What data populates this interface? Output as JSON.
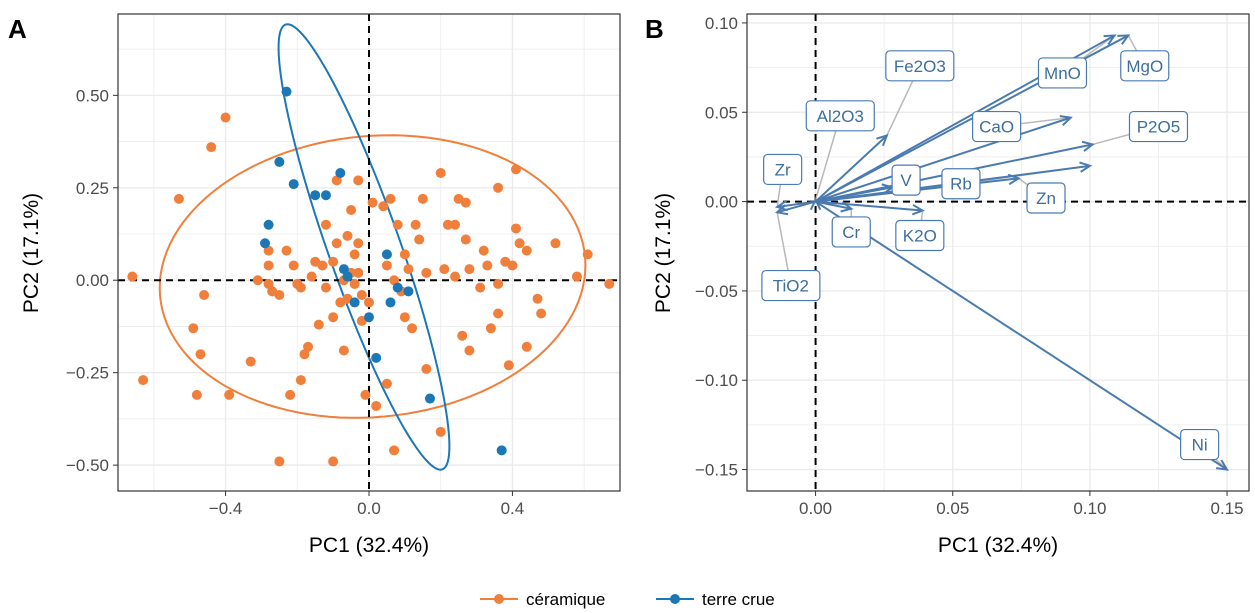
{
  "colors": {
    "ceramique": "#F07F3C",
    "terre_crue": "#1B77B5",
    "arrow": "#4A7BB0",
    "connector": "#B8B8B8",
    "grid": "#EBEBEB"
  },
  "legend": {
    "items": [
      {
        "label": "céramique",
        "color": "#F07F3C"
      },
      {
        "label": "terre crue",
        "color": "#1B77B5"
      }
    ],
    "position": "bottom"
  },
  "chart_data": [
    {
      "type": "scatter",
      "panel": "A",
      "xlabel": "PC1 (32.4%)",
      "ylabel": "PC2 (17.1%)",
      "xlim": [
        -0.7,
        0.7
      ],
      "ylim": [
        -0.57,
        0.72
      ],
      "xticks": [
        -0.4,
        0.0,
        0.4
      ],
      "xtick_labels": [
        "−0.4",
        "0.0",
        "0.4"
      ],
      "yticks": [
        -0.5,
        -0.25,
        0.0,
        0.25,
        0.5
      ],
      "ytick_labels": [
        "−0.50",
        "−0.25",
        "0.00",
        "0.25",
        "0.50"
      ],
      "grid": true,
      "reference_lines": {
        "x": 0,
        "y": 0
      },
      "series": [
        {
          "name": "céramique",
          "color": "#F07F3C",
          "points": [
            [
              -0.66,
              0.01
            ],
            [
              -0.63,
              -0.27
            ],
            [
              -0.53,
              0.22
            ],
            [
              -0.49,
              -0.13
            ],
            [
              -0.48,
              -0.31
            ],
            [
              -0.47,
              -0.2
            ],
            [
              -0.46,
              -0.04
            ],
            [
              -0.44,
              0.36
            ],
            [
              -0.4,
              0.44
            ],
            [
              -0.39,
              -0.31
            ],
            [
              -0.33,
              -0.22
            ],
            [
              -0.31,
              0.0
            ],
            [
              -0.28,
              -0.01
            ],
            [
              -0.28,
              0.08
            ],
            [
              -0.28,
              0.04
            ],
            [
              -0.27,
              -0.03
            ],
            [
              -0.25,
              -0.49
            ],
            [
              -0.25,
              -0.04
            ],
            [
              -0.22,
              -0.31
            ],
            [
              -0.21,
              0.04
            ],
            [
              -0.2,
              -0.01
            ],
            [
              -0.19,
              -0.02
            ],
            [
              -0.19,
              -0.27
            ],
            [
              -0.18,
              -0.2
            ],
            [
              -0.17,
              -0.18
            ],
            [
              -0.16,
              0.01
            ],
            [
              -0.15,
              0.05
            ],
            [
              -0.14,
              -0.12
            ],
            [
              -0.13,
              0.04
            ],
            [
              -0.12,
              -0.02
            ],
            [
              -0.12,
              0.15
            ],
            [
              -0.1,
              0.05
            ],
            [
              -0.1,
              -0.1
            ],
            [
              -0.09,
              0.1
            ],
            [
              -0.09,
              0.27
            ],
            [
              -0.08,
              -0.06
            ],
            [
              -0.07,
              0.0
            ],
            [
              -0.07,
              -0.19
            ],
            [
              -0.06,
              -0.05
            ],
            [
              -0.06,
              0.12
            ],
            [
              -0.05,
              0.02
            ],
            [
              -0.05,
              0.19
            ],
            [
              -0.04,
              0.07
            ],
            [
              -0.04,
              -0.01
            ],
            [
              -0.03,
              0.02
            ],
            [
              -0.03,
              0.27
            ],
            [
              -0.03,
              0.1
            ],
            [
              -0.02,
              -0.11
            ],
            [
              -0.02,
              -0.04
            ],
            [
              -0.01,
              -0.31
            ],
            [
              0.0,
              -0.06
            ],
            [
              0.01,
              0.21
            ],
            [
              0.02,
              -0.34
            ],
            [
              0.04,
              0.2
            ],
            [
              0.05,
              -0.28
            ],
            [
              0.05,
              0.04
            ],
            [
              0.06,
              0.22
            ],
            [
              0.07,
              0.0
            ],
            [
              0.07,
              -0.46
            ],
            [
              0.08,
              0.15
            ],
            [
              0.09,
              -0.03
            ],
            [
              0.1,
              0.07
            ],
            [
              0.1,
              -0.1
            ],
            [
              0.11,
              0.03
            ],
            [
              0.12,
              -0.13
            ],
            [
              0.13,
              0.15
            ],
            [
              0.14,
              0.11
            ],
            [
              0.15,
              0.22
            ],
            [
              0.16,
              -0.24
            ],
            [
              0.16,
              0.02
            ],
            [
              0.2,
              0.29
            ],
            [
              0.2,
              -0.41
            ],
            [
              0.21,
              0.03
            ],
            [
              0.22,
              0.15
            ],
            [
              0.24,
              0.01
            ],
            [
              0.25,
              0.22
            ],
            [
              0.26,
              -0.15
            ],
            [
              0.27,
              0.11
            ],
            [
              0.27,
              0.21
            ],
            [
              0.28,
              0.03
            ],
            [
              0.28,
              -0.19
            ],
            [
              0.31,
              -0.02
            ],
            [
              0.32,
              0.08
            ],
            [
              0.33,
              0.04
            ],
            [
              0.34,
              -0.13
            ],
            [
              0.36,
              -0.01
            ],
            [
              0.36,
              -0.09
            ],
            [
              0.36,
              0.25
            ],
            [
              0.38,
              0.05
            ],
            [
              0.39,
              -0.23
            ],
            [
              0.4,
              0.04
            ],
            [
              0.41,
              0.14
            ],
            [
              0.42,
              0.1
            ],
            [
              0.44,
              0.08
            ],
            [
              0.44,
              -0.18
            ],
            [
              0.47,
              -0.05
            ],
            [
              0.48,
              -0.09
            ],
            [
              0.52,
              0.1
            ],
            [
              0.58,
              0.01
            ],
            [
              0.61,
              0.07
            ],
            [
              0.67,
              -0.01
            ],
            [
              0.41,
              0.3
            ],
            [
              -0.1,
              -0.49
            ],
            [
              -0.23,
              0.08
            ],
            [
              0.24,
              0.15
            ]
          ]
        },
        {
          "name": "terre crue",
          "color": "#1B77B5",
          "points": [
            [
              -0.29,
              0.1
            ],
            [
              -0.28,
              0.15
            ],
            [
              -0.25,
              0.32
            ],
            [
              -0.23,
              0.51
            ],
            [
              -0.21,
              0.26
            ],
            [
              -0.15,
              0.23
            ],
            [
              -0.12,
              0.23
            ],
            [
              -0.08,
              0.29
            ],
            [
              -0.07,
              0.03
            ],
            [
              -0.06,
              0.01
            ],
            [
              -0.04,
              -0.06
            ],
            [
              0.0,
              -0.1
            ],
            [
              0.02,
              -0.21
            ],
            [
              0.05,
              0.07
            ],
            [
              0.06,
              -0.06
            ],
            [
              0.08,
              -0.02
            ],
            [
              0.11,
              -0.03
            ],
            [
              0.17,
              -0.32
            ],
            [
              0.37,
              -0.46
            ]
          ]
        }
      ],
      "ellipses": [
        {
          "series": "céramique",
          "cx": 0.01,
          "cy": 0.01,
          "rx": 0.595,
          "ry": 0.38,
          "angle_deg": 5
        },
        {
          "series": "terre crue",
          "cx": -0.014,
          "cy": 0.09,
          "rx": 0.1,
          "ry": 0.64,
          "angle_deg": 20
        }
      ]
    },
    {
      "type": "biplot",
      "panel": "B",
      "xlabel": "PC1 (32.4%)",
      "ylabel": "PC2 (17.1%)",
      "xlim": [
        -0.025,
        0.158
      ],
      "ylim": [
        -0.162,
        0.105
      ],
      "xticks": [
        0.0,
        0.05,
        0.1,
        0.15
      ],
      "xtick_labels": [
        "0.00",
        "0.05",
        "0.10",
        "0.15"
      ],
      "yticks": [
        -0.15,
        -0.1,
        -0.05,
        0.0,
        0.05,
        0.1
      ],
      "ytick_labels": [
        "−0.15",
        "−0.10",
        "−0.05",
        "0.00",
        "0.05",
        "0.10"
      ],
      "grid": true,
      "reference_lines": {
        "x": 0,
        "y": 0
      },
      "vectors": [
        {
          "name": "Fe2O3",
          "x": 0.026,
          "y": 0.037,
          "label_x": 0.038,
          "label_y": 0.076
        },
        {
          "name": "MnO",
          "x": 0.109,
          "y": 0.093,
          "label_x": 0.09,
          "label_y": 0.072
        },
        {
          "name": "MgO",
          "x": 0.114,
          "y": 0.093,
          "label_x": 0.12,
          "label_y": 0.076
        },
        {
          "name": "Al2O3",
          "x": 0.0,
          "y": 0.001,
          "label_x": 0.009,
          "label_y": 0.048
        },
        {
          "name": "CaO",
          "x": 0.093,
          "y": 0.047,
          "label_x": 0.066,
          "label_y": 0.042
        },
        {
          "name": "P2O5",
          "x": 0.101,
          "y": 0.032,
          "label_x": 0.125,
          "label_y": 0.042
        },
        {
          "name": "Zr",
          "x": -0.014,
          "y": -0.003,
          "label_x": -0.012,
          "label_y": 0.018
        },
        {
          "name": "V",
          "x": 0.028,
          "y": 0.008,
          "label_x": 0.033,
          "label_y": 0.012
        },
        {
          "name": "Rb",
          "x": 0.1,
          "y": 0.02,
          "label_x": 0.053,
          "label_y": 0.01
        },
        {
          "name": "Zn",
          "x": 0.074,
          "y": 0.013,
          "label_x": 0.084,
          "label_y": 0.002
        },
        {
          "name": "K2O",
          "x": 0.039,
          "y": -0.005,
          "label_x": 0.038,
          "label_y": -0.019
        },
        {
          "name": "Cr",
          "x": 0.013,
          "y": -0.004,
          "label_x": 0.013,
          "label_y": -0.017
        },
        {
          "name": "TiO2",
          "x": -0.014,
          "y": -0.006,
          "label_x": -0.009,
          "label_y": -0.047
        },
        {
          "name": "Ni",
          "x": 0.15,
          "y": -0.15,
          "label_x": 0.14,
          "label_y": -0.136
        }
      ]
    }
  ],
  "panel_tags": [
    "A",
    "B"
  ]
}
